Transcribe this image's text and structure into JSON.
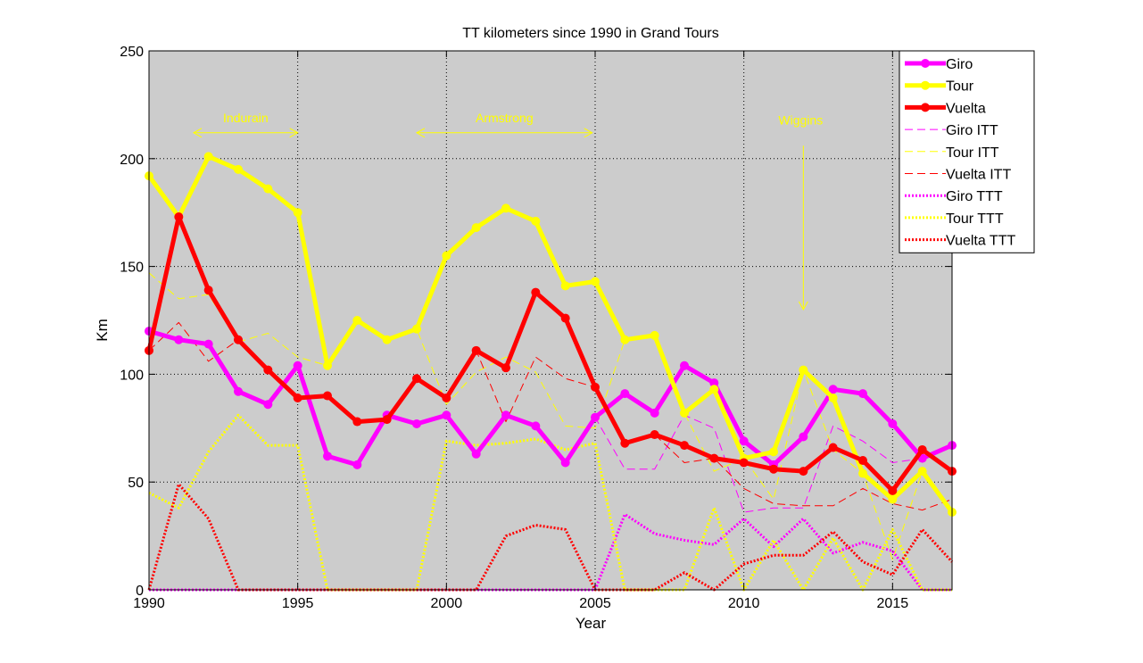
{
  "chart_data": {
    "type": "line",
    "title": "TT kilometers since 1990 in Grand Tours",
    "xlabel": "Year",
    "ylabel": "Km",
    "xlim": [
      1990,
      2017
    ],
    "ylim": [
      0,
      250
    ],
    "xticks": [
      1990,
      1995,
      2000,
      2005,
      2010,
      2015
    ],
    "yticks": [
      0,
      50,
      100,
      150,
      200,
      250
    ],
    "grid": true,
    "legend_position": "top-right",
    "x": [
      1990,
      1991,
      1992,
      1993,
      1994,
      1995,
      1996,
      1997,
      1998,
      1999,
      2000,
      2001,
      2002,
      2003,
      2004,
      2005,
      2006,
      2007,
      2008,
      2009,
      2010,
      2011,
      2012,
      2013,
      2014,
      2015,
      2016,
      2017
    ],
    "series": [
      {
        "name": "Giro",
        "color": "#ff00ff",
        "style": "solid-bold-markers",
        "values": [
          120,
          116,
          114,
          92,
          86,
          104,
          62,
          58,
          81,
          77,
          81,
          63,
          81,
          76,
          59,
          80,
          91,
          82,
          104,
          96,
          69,
          58,
          71,
          93,
          91,
          77,
          61,
          67
        ]
      },
      {
        "name": "Tour",
        "color": "#ffff00",
        "style": "solid-bold-markers",
        "values": [
          192,
          173,
          201,
          195,
          186,
          175,
          104,
          125,
          116,
          121,
          155,
          168,
          177,
          171,
          141,
          143,
          116,
          118,
          82,
          93,
          61,
          64,
          102,
          89,
          54,
          42,
          55,
          36
        ]
      },
      {
        "name": "Vuelta",
        "color": "#ff0000",
        "style": "solid-bold-markers",
        "values": [
          111,
          173,
          139,
          116,
          102,
          89,
          90,
          78,
          79,
          98,
          89,
          111,
          103,
          138,
          126,
          94,
          68,
          72,
          67,
          61,
          59,
          56,
          55,
          66,
          60,
          46,
          65,
          55
        ]
      },
      {
        "name": "Giro ITT",
        "color": "#ff00ff",
        "style": "dashed",
        "values": [
          120,
          116,
          114,
          92,
          86,
          104,
          62,
          58,
          81,
          77,
          81,
          63,
          81,
          76,
          59,
          80,
          56,
          56,
          81,
          75,
          36,
          38,
          38,
          76,
          69,
          59,
          61,
          67
        ]
      },
      {
        "name": "Tour ITT",
        "color": "#ffff00",
        "style": "dashed",
        "values": [
          147,
          135,
          137,
          115,
          119,
          108,
          104,
          125,
          116,
          121,
          86,
          101,
          108,
          101,
          76,
          75,
          116,
          118,
          82,
          55,
          61,
          42,
          102,
          65,
          54,
          14,
          55,
          36
        ]
      },
      {
        "name": "Vuelta ITT",
        "color": "#ff0000",
        "style": "dashed",
        "values": [
          111,
          124,
          106,
          116,
          102,
          89,
          90,
          78,
          79,
          98,
          89,
          111,
          78,
          108,
          98,
          94,
          68,
          72,
          59,
          61,
          47,
          40,
          39,
          39,
          47,
          40,
          37,
          42
        ]
      },
      {
        "name": "Giro TTT",
        "color": "#ff00ff",
        "style": "dotted",
        "values": [
          0,
          0,
          0,
          0,
          0,
          0,
          0,
          0,
          0,
          0,
          0,
          0,
          0,
          0,
          0,
          0,
          35,
          26,
          23,
          21,
          33,
          20,
          33,
          17,
          22,
          18,
          0,
          0
        ]
      },
      {
        "name": "Tour TTT",
        "color": "#ffff00",
        "style": "dotted",
        "values": [
          45,
          38,
          64,
          81,
          67,
          67,
          0,
          0,
          0,
          0,
          69,
          67,
          68,
          70,
          65,
          68,
          0,
          0,
          0,
          38,
          0,
          23,
          0,
          24,
          0,
          28,
          0,
          0
        ]
      },
      {
        "name": "Vuelta TTT",
        "color": "#ff0000",
        "style": "dotted",
        "values": [
          0,
          49,
          33,
          0,
          0,
          0,
          0,
          0,
          0,
          0,
          0,
          0,
          25,
          30,
          28,
          0,
          0,
          0,
          8,
          0,
          12,
          16,
          16,
          27,
          13,
          7,
          28,
          13
        ]
      }
    ],
    "annotations": [
      {
        "text": "Indurain",
        "x_start": 1991.5,
        "x_end": 1995,
        "y": 212,
        "type": "double-arrow"
      },
      {
        "text": "Armstrong",
        "x_start": 1999,
        "x_end": 2004.9,
        "y": 212,
        "type": "double-arrow"
      },
      {
        "text": "Wiggins",
        "x": 2012,
        "y_start": 206,
        "y_end": 130,
        "type": "down-arrow"
      }
    ]
  }
}
